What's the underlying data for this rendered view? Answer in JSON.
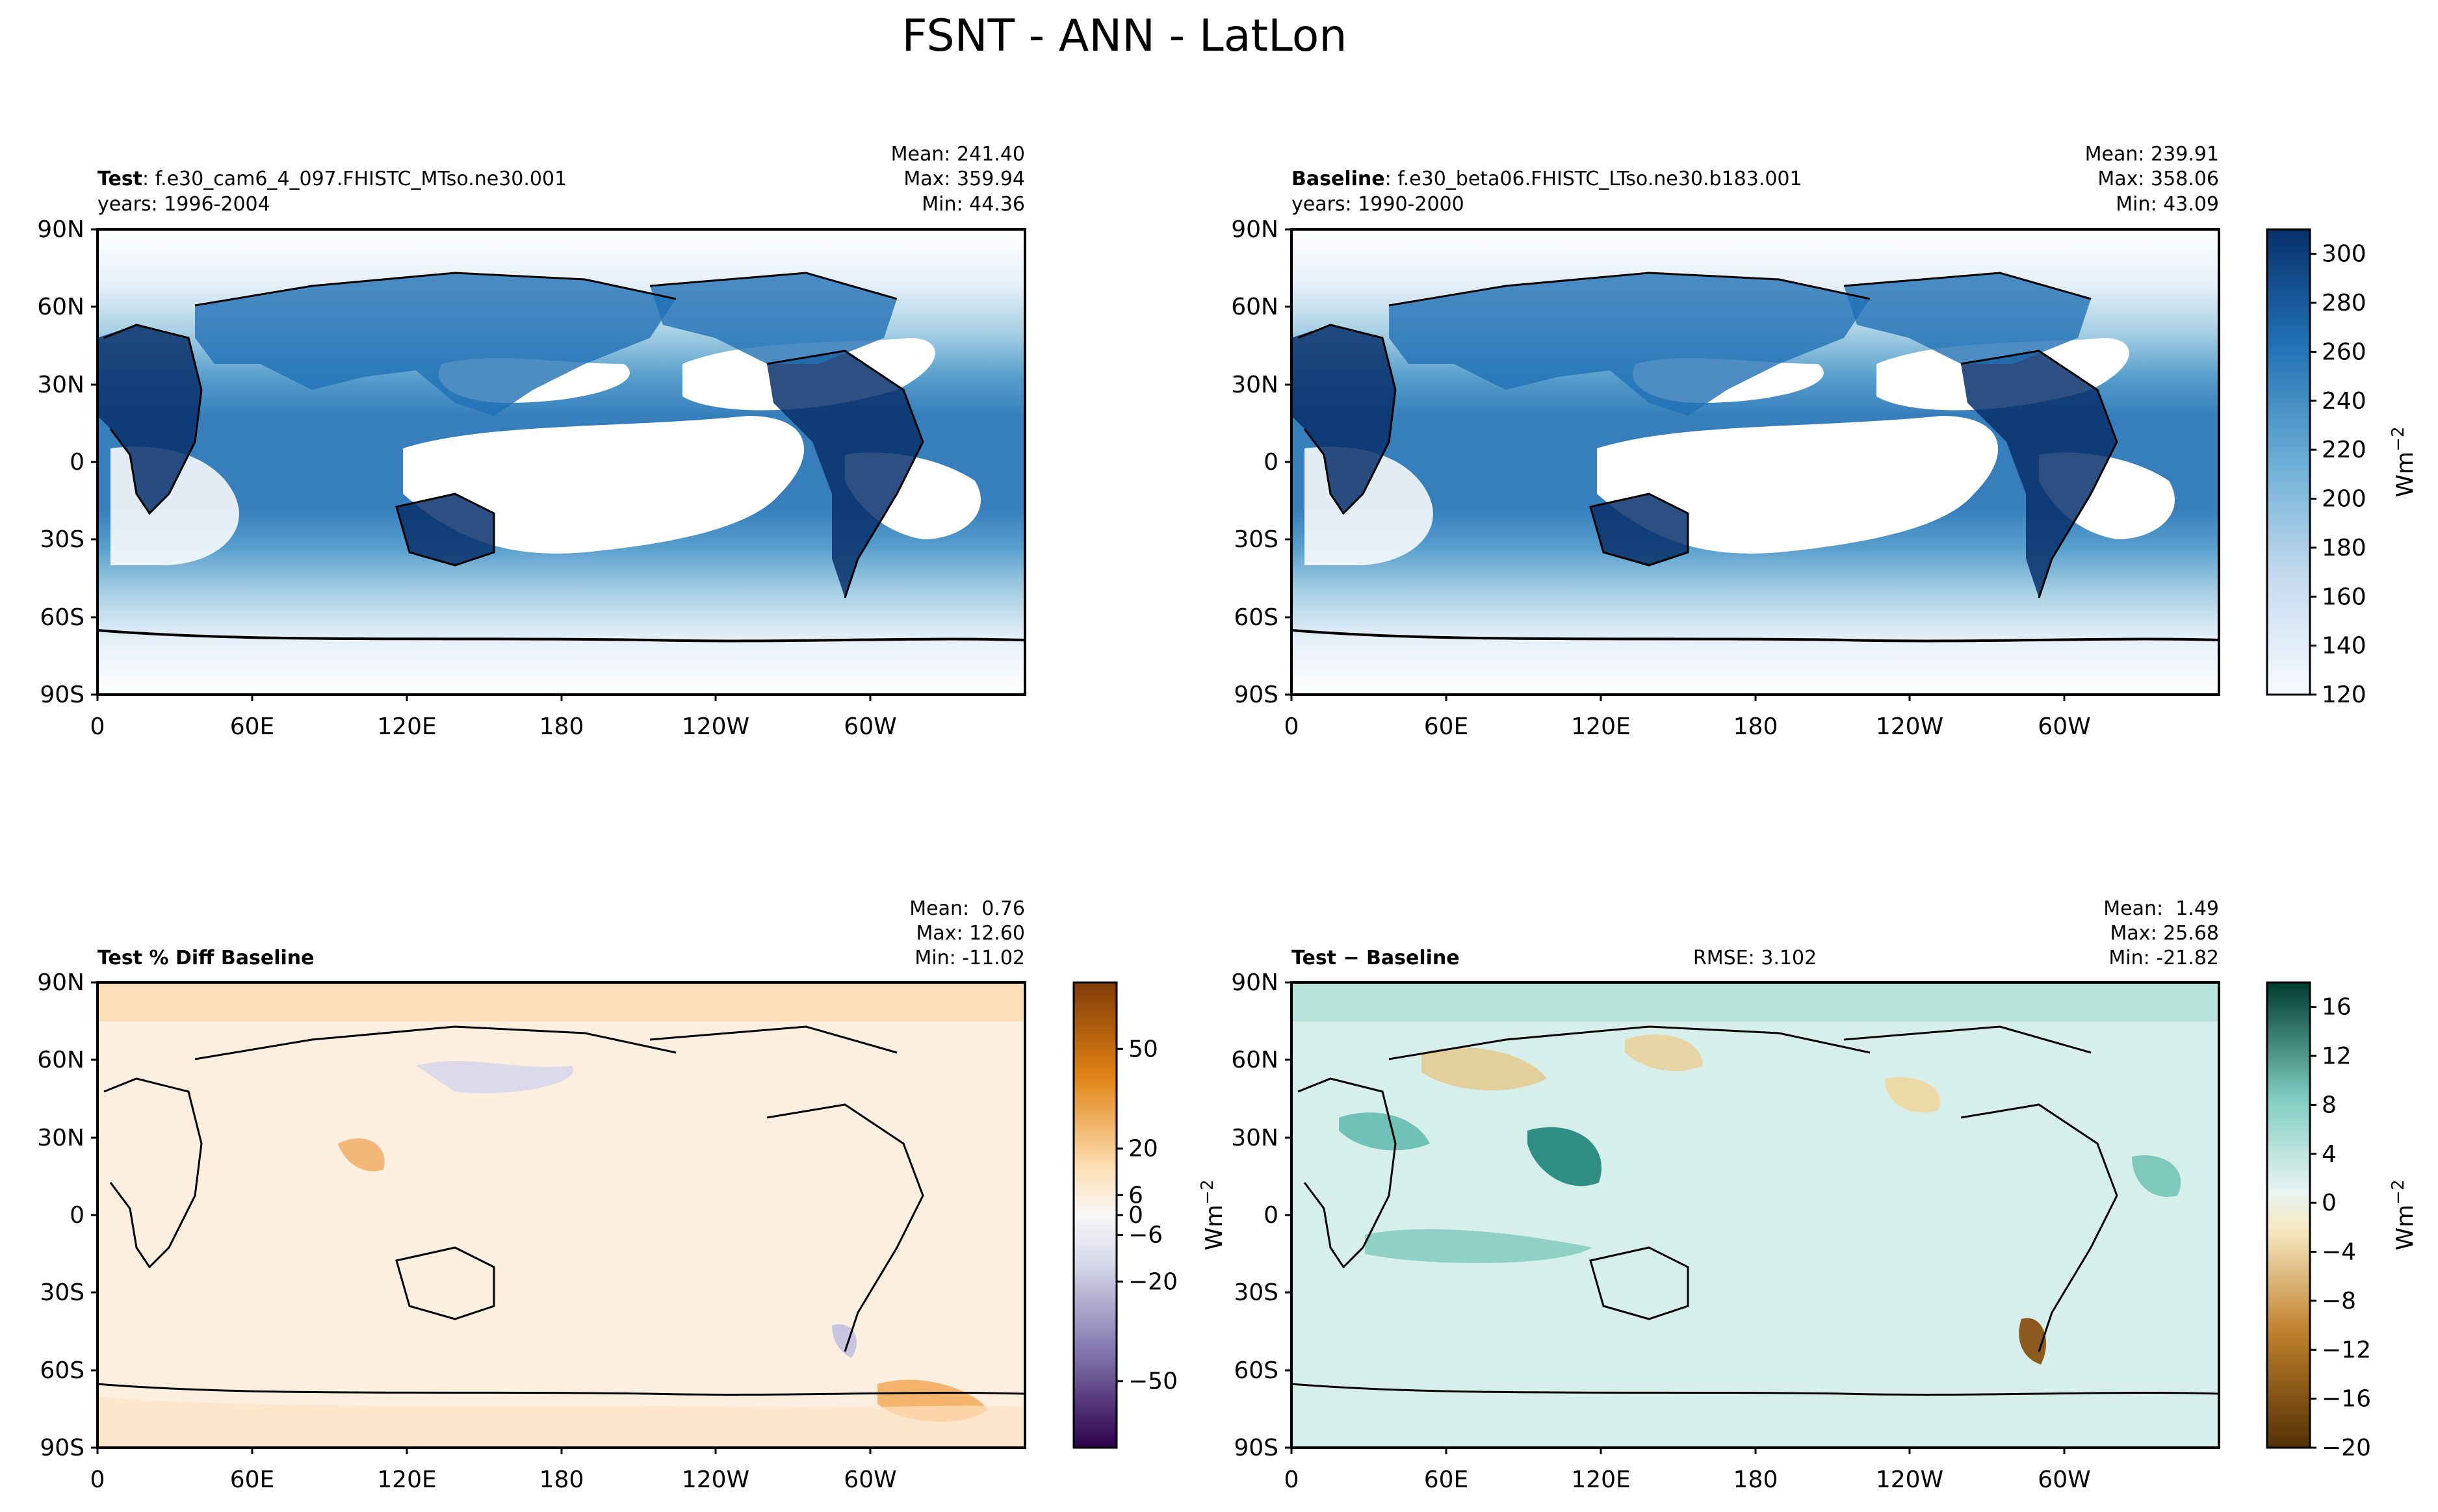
{
  "figure": {
    "title": "FSNT - ANN - LatLon"
  },
  "chart_data": [
    {
      "type": "heatmap",
      "panel": "test",
      "label_bold": "Test",
      "label_rest": ": f.e30_cam6_4_097.FHISTC_MTso.ne30.001",
      "years": "years: 1996-2004",
      "stats": [
        "Mean: 241.40",
        "Max: 359.94",
        "Min: 44.36"
      ],
      "x_ticks": [
        "0",
        "60E",
        "120E",
        "180",
        "120W",
        "60W"
      ],
      "y_ticks": [
        "90N",
        "60N",
        "30N",
        "0",
        "30S",
        "60S",
        "90S"
      ],
      "xlim": [
        0,
        360
      ],
      "ylim": [
        -90,
        90
      ],
      "cmap": "Blues",
      "color_range": [
        120,
        310
      ]
    },
    {
      "type": "heatmap",
      "panel": "baseline",
      "label_bold": "Baseline",
      "label_rest": ": f.e30_beta06.FHISTC_LTso.ne30.b183.001",
      "years": "years: 1990-2000",
      "stats": [
        "Mean: 239.91",
        "Max: 358.06",
        "Min: 43.09"
      ],
      "x_ticks": [
        "0",
        "60E",
        "120E",
        "180",
        "120W",
        "60W"
      ],
      "y_ticks": [
        "90N",
        "60N",
        "30N",
        "0",
        "30S",
        "60S",
        "90S"
      ],
      "xlim": [
        0,
        360
      ],
      "ylim": [
        -90,
        90
      ],
      "cmap": "Blues",
      "color_range": [
        120,
        310
      ],
      "colorbar": {
        "ticks": [
          "300",
          "280",
          "260",
          "240",
          "220",
          "200",
          "180",
          "160",
          "140",
          "120"
        ],
        "label": "Wm",
        "label_sup": "−2",
        "range": [
          120,
          310
        ]
      }
    },
    {
      "type": "heatmap",
      "panel": "pct_diff",
      "label_bold": "Test % Diff Baseline",
      "stats": [
        "Mean:  0.76",
        "Max: 12.60",
        "Min: -11.02"
      ],
      "x_ticks": [
        "0",
        "60E",
        "120E",
        "180",
        "120W",
        "60W"
      ],
      "y_ticks": [
        "90N",
        "60N",
        "30N",
        "0",
        "30S",
        "60S",
        "90S"
      ],
      "xlim": [
        0,
        360
      ],
      "ylim": [
        -90,
        90
      ],
      "cmap": "PuOr",
      "colorbar": {
        "ticks": [
          "50",
          "20",
          "6",
          "0",
          "−6",
          "−20",
          "−50"
        ],
        "label": "Wm",
        "label_sup": "−2",
        "range": [
          -70,
          70
        ]
      }
    },
    {
      "type": "heatmap",
      "panel": "diff",
      "label_bold": "Test",
      "label_rest": " − Baseline",
      "rmse": "RMSE: 3.102",
      "stats": [
        "Mean:  1.49",
        "Max: 25.68",
        "Min: -21.82"
      ],
      "x_ticks": [
        "0",
        "60E",
        "120E",
        "180",
        "120W",
        "60W"
      ],
      "y_ticks": [
        "90N",
        "60N",
        "30N",
        "0",
        "30S",
        "60S",
        "90S"
      ],
      "xlim": [
        0,
        360
      ],
      "ylim": [
        -90,
        90
      ],
      "cmap": "BrBG",
      "colorbar": {
        "ticks": [
          "16",
          "12",
          "8",
          "4",
          "0",
          "−4",
          "−8",
          "−12",
          "−16",
          "−20"
        ],
        "label": "Wm",
        "label_sup": "−2",
        "range": [
          -20,
          18
        ]
      }
    }
  ],
  "colors": {
    "blue_dark": "#08306b",
    "blue_mid": "#2171b5",
    "blue_light": "#c6dbef",
    "ocean_white": "#ffffff",
    "diff_bg": "#fbecd8",
    "diff_purple": "#dcdaea",
    "diff_orange": "#f7c78e",
    "teal_bg": "#d4eee9",
    "teal_dark": "#35978f",
    "brown": "#bf812d",
    "land_line": "#000000"
  }
}
